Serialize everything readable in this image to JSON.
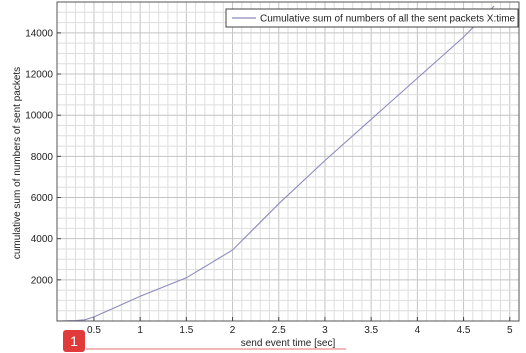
{
  "chart_data": {
    "type": "line",
    "title": "",
    "xlabel": "send event time [sec]",
    "ylabel": "cumulative sum of numbers of sent packets",
    "xlim": [
      0.1,
      5.1
    ],
    "ylim": [
      0,
      15500
    ],
    "xticks": [
      0.5,
      1,
      1.5,
      2,
      2.5,
      3,
      3.5,
      4,
      4.5,
      5
    ],
    "xtick_labels": [
      "0.5",
      "1",
      "1.5",
      "2",
      "2.5",
      "3",
      "3.5",
      "4",
      "4.5",
      "5"
    ],
    "yticks": [
      2000,
      4000,
      6000,
      8000,
      10000,
      12000,
      14000
    ],
    "ytick_labels": [
      "2000",
      "4000",
      "6000",
      "8000",
      "10000",
      "12000",
      "14000"
    ],
    "grid": true,
    "legend_position": "top-right",
    "series": [
      {
        "name": "Cumulative sum of numbers of all the sent packets X:time",
        "x": [
          0.1,
          0.3,
          0.4,
          0.5,
          0.75,
          1.0,
          1.5,
          2.0,
          2.5,
          3.0,
          3.5,
          4.0,
          4.5,
          4.83
        ],
        "y": [
          0,
          20,
          60,
          200,
          700,
          1200,
          2100,
          3450,
          5700,
          7800,
          9800,
          11800,
          13800,
          15300
        ],
        "color": "#8b8bbf"
      }
    ]
  },
  "badge": {
    "text": "1",
    "color": "#e03a3a"
  }
}
